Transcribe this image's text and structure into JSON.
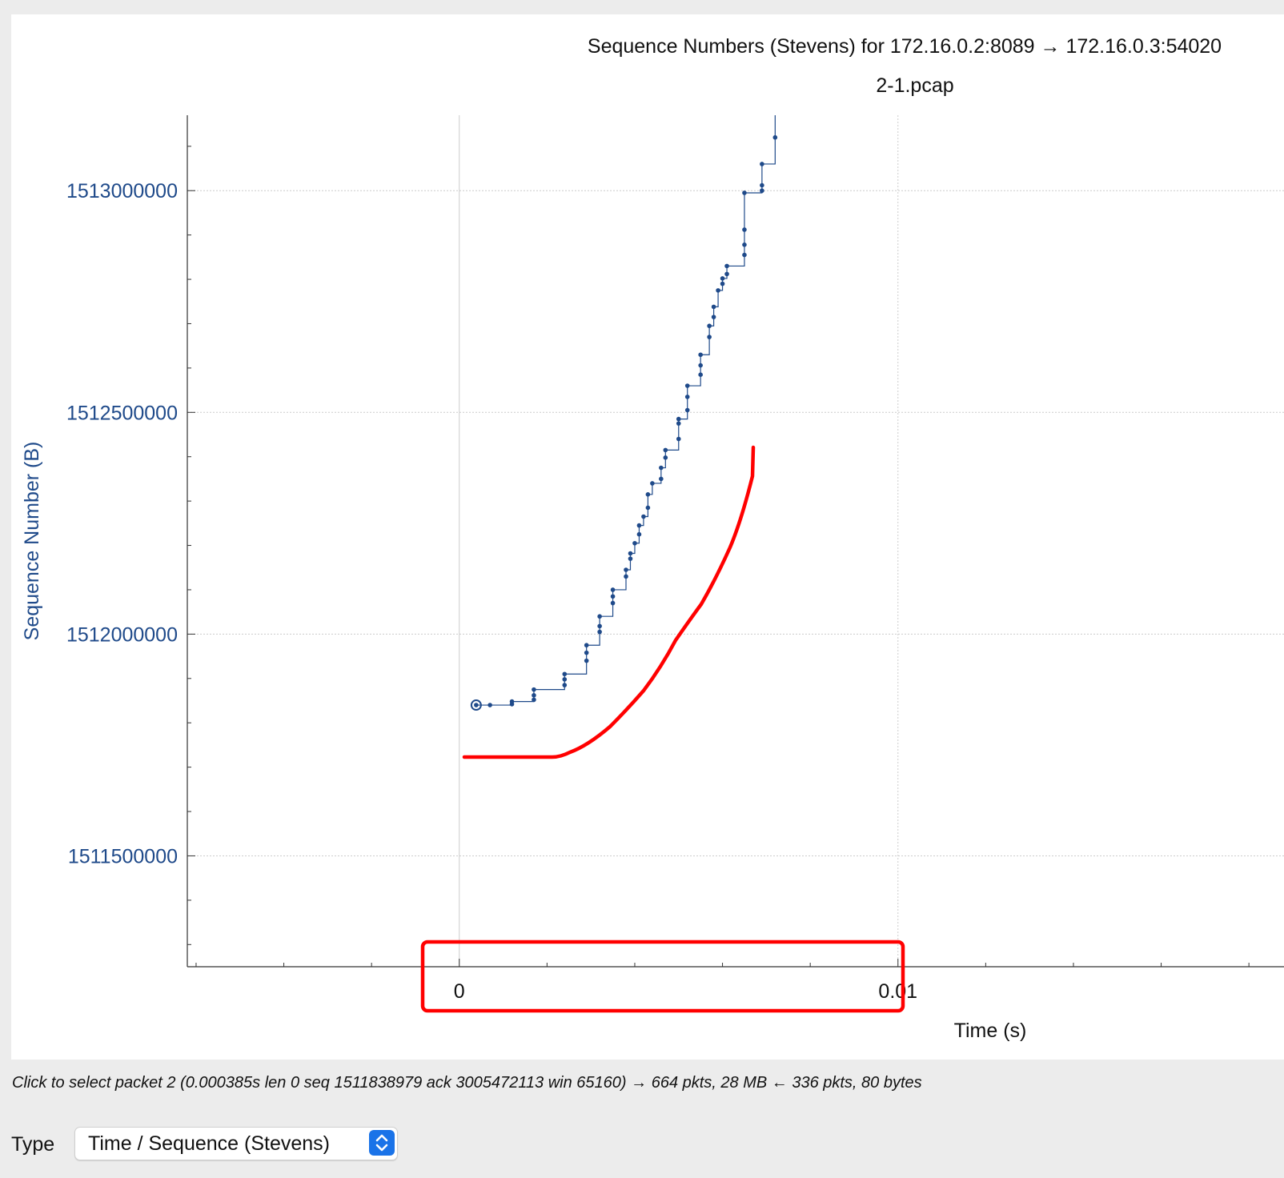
{
  "window": {
    "title": "Sequence Numbers (Stevens) for 172.16.0.2:8089 → 172.16.0.3:54020",
    "subtitle": "2-1.pcap"
  },
  "status": {
    "text": "Click to select packet 2 (0.000385s len 0 seq 1511838979 ack 3005472113 win 65160) → 664 pkts, 28 MB ← 336 pkts, 80 bytes"
  },
  "controls": {
    "type_label": "Type",
    "type_value": "Time / Sequence (Stevens)"
  },
  "colors": {
    "series": "#1f4a8a",
    "annotation": "#ff0000",
    "grid": "#cccccc"
  },
  "icons": {
    "select_chevron": "chevron-up-down-icon"
  },
  "chart_data": {
    "type": "line",
    "title": "Sequence Numbers (Stevens) for 172.16.0.2:8089 → 172.16.0.3:54020",
    "subtitle": "2-1.pcap",
    "xlabel": "Time (s)",
    "ylabel": "Sequence Number (B)",
    "xlim": [
      -0.0062,
      0.0188
    ],
    "ylim": [
      1511250000,
      1513170000
    ],
    "x_ticks": [
      {
        "value": 0,
        "label": "0"
      },
      {
        "value": 0.01,
        "label": "0.01"
      }
    ],
    "y_ticks": [
      {
        "value": 1511500000,
        "label": "1511500000"
      },
      {
        "value": 1512000000,
        "label": "1512000000"
      },
      {
        "value": 1512500000,
        "label": "1512500000"
      },
      {
        "value": 1513000000,
        "label": "1513000000"
      }
    ],
    "grid": true,
    "series": [
      {
        "style": "step",
        "x": [
          0.000385,
          0.0007,
          0.0012,
          0.0012,
          0.0017,
          0.0017,
          0.0017,
          0.0024,
          0.0024,
          0.0024,
          0.0029,
          0.0029,
          0.0029,
          0.0032,
          0.0032,
          0.0032,
          0.0035,
          0.0035,
          0.0035,
          0.0038,
          0.0038,
          0.0039,
          0.0039,
          0.004,
          0.0041,
          0.0041,
          0.0042,
          0.0043,
          0.0043,
          0.0044,
          0.0046,
          0.0046,
          0.0047,
          0.0047,
          0.005,
          0.005,
          0.005,
          0.0052,
          0.0052,
          0.0052,
          0.0055,
          0.0055,
          0.0055,
          0.0057,
          0.0057,
          0.0058,
          0.0058,
          0.0059,
          0.006,
          0.006,
          0.0061,
          0.0061,
          0.0065,
          0.0065,
          0.0065,
          0.0065,
          0.0069,
          0.0069,
          0.0069,
          0.0072
        ],
        "y": [
          1511840000,
          1511840000,
          1511842000,
          1511848000,
          1511852000,
          1511862000,
          1511875000,
          1511885000,
          1511898000,
          1511910000,
          1511940000,
          1511958000,
          1511975000,
          1512005000,
          1512018000,
          1512040000,
          1512070000,
          1512085000,
          1512100000,
          1512130000,
          1512145000,
          1512170000,
          1512182000,
          1512205000,
          1512225000,
          1512245000,
          1512265000,
          1512285000,
          1512315000,
          1512340000,
          1512350000,
          1512375000,
          1512398000,
          1512415000,
          1512440000,
          1512475000,
          1512485000,
          1512505000,
          1512535000,
          1512560000,
          1512585000,
          1512606000,
          1512630000,
          1512670000,
          1512695000,
          1512715000,
          1512738000,
          1512775000,
          1512790000,
          1512802000,
          1512812000,
          1512830000,
          1512855000,
          1512878000,
          1512912000,
          1512995000,
          1513000000,
          1513012000,
          1513060000,
          1513120000
        ]
      }
    ],
    "annotations": [
      {
        "type": "freehand-curve",
        "color": "#ff0000"
      },
      {
        "type": "rectangle",
        "color": "#ff0000"
      }
    ]
  }
}
